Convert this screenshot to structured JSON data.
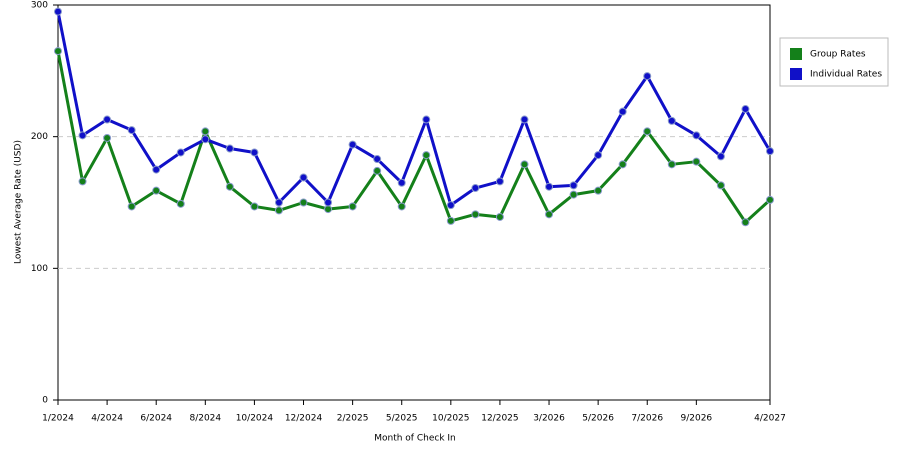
{
  "chart_data": {
    "type": "line",
    "xlabel": "Month of Check In",
    "ylabel": "Lowest Average Rate (USD)",
    "categories": [
      "1/2024",
      null,
      "4/2024",
      null,
      "6/2024",
      null,
      "8/2024",
      null,
      "10/2024",
      null,
      "12/2024",
      null,
      "2/2025",
      null,
      "5/2025",
      null,
      "10/2025",
      null,
      "12/2025",
      null,
      "3/2026",
      null,
      "5/2026",
      null,
      "7/2026",
      null,
      "9/2026",
      null,
      null,
      "4/2027"
    ],
    "series": [
      {
        "name": "Group Rates",
        "color": "#14801a",
        "values": [
          265,
          166,
          199,
          147,
          159,
          149,
          204,
          162,
          147,
          144,
          150,
          145,
          147,
          174,
          147,
          186,
          136,
          141,
          139,
          179,
          141,
          156,
          159,
          179,
          204,
          179,
          181,
          163,
          135,
          152
        ]
      },
      {
        "name": "Individual Rates",
        "color": "#1010c8",
        "values": [
          295,
          201,
          213,
          205,
          175,
          188,
          198,
          191,
          188,
          150,
          169,
          150,
          194,
          183,
          165,
          213,
          148,
          161,
          166,
          213,
          162,
          163,
          186,
          219,
          246,
          212,
          201,
          185,
          221,
          189
        ]
      }
    ],
    "ylim": [
      0,
      300
    ],
    "yticks": [
      0,
      100,
      200,
      300
    ],
    "grid": true,
    "legend": "right"
  }
}
